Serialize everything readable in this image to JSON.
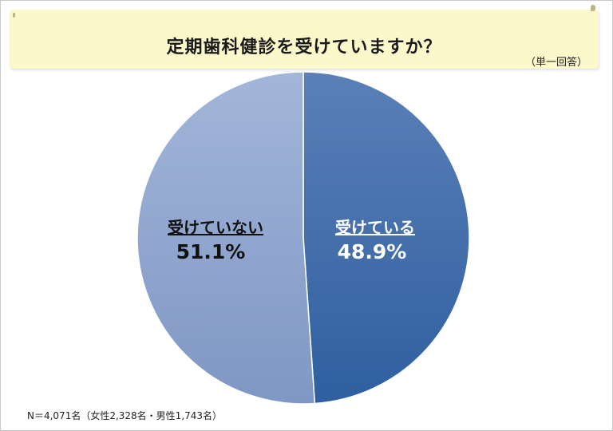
{
  "title": "定期歯科健診を受けていますか？",
  "subtitle": "（単一回答）",
  "footnote": "N＝4,071名（女性2,328名・男性1,743名）",
  "colors": {
    "banner_bg": "#fbf8cc",
    "slice_yes": "#3d6aa8",
    "slice_no": "#8ea5cf"
  },
  "chart_data": {
    "type": "pie",
    "slices": [
      {
        "label": "受けている",
        "value": 48.9,
        "value_label": "48.9%"
      },
      {
        "label": "受けていない",
        "value": 51.1,
        "value_label": "51.1%"
      }
    ]
  }
}
